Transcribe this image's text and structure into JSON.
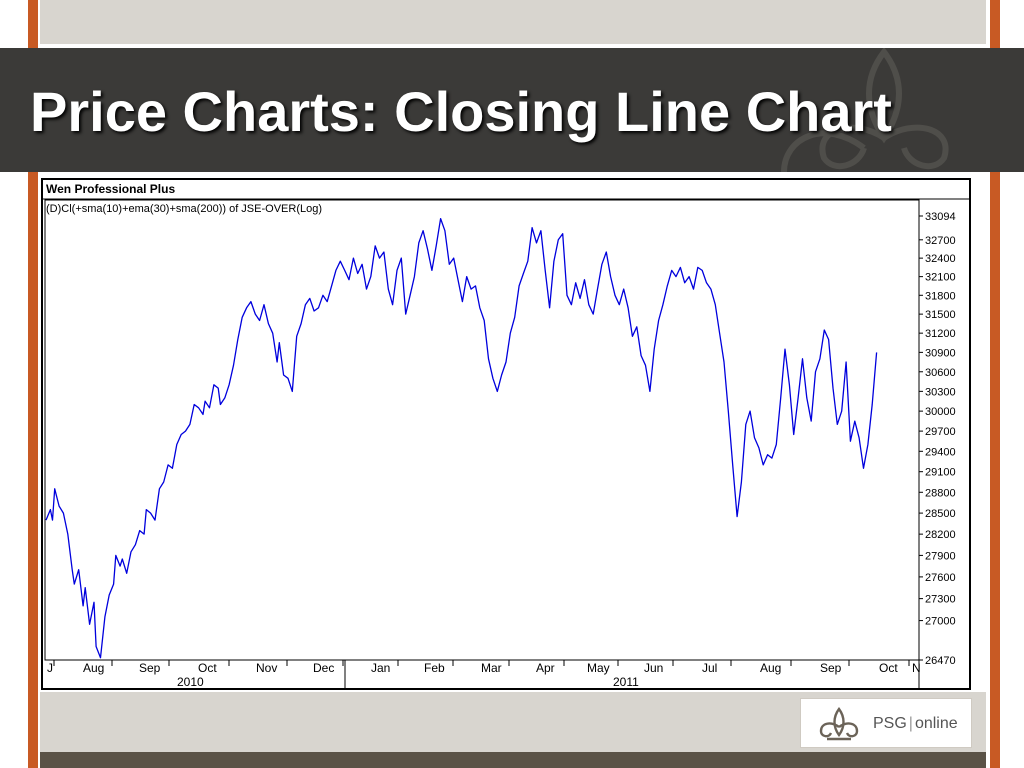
{
  "slide": {
    "title": "Price Charts: Closing Line Chart",
    "colors": {
      "accent": "#c85a24",
      "header_bg": "#3b3a38",
      "panel": "#d8d5cf",
      "line": "#0000dd"
    }
  },
  "logo": {
    "brand": "PSG",
    "suffix": "online",
    "icon": "fleur-de-lis-icon"
  },
  "chart_data": {
    "type": "line",
    "title": "Wen Professional Plus",
    "subtitle": "(D)Cl(+sma(10)+ema(30)+sma(200)) of JSE-OVER(Log)",
    "y_scale": "log",
    "ylim": [
      26470,
      33094
    ],
    "y_ticks": [
      "33094",
      "32700",
      "32400",
      "32100",
      "31800",
      "31500",
      "31200",
      "30900",
      "30600",
      "30300",
      "30000",
      "29700",
      "29400",
      "29100",
      "28800",
      "28500",
      "28200",
      "27900",
      "27600",
      "27300",
      "27000",
      "26470"
    ],
    "x_month_labels": [
      "J",
      "Aug",
      "Sep",
      "Oct",
      "Nov",
      "Dec",
      "Jan",
      "Feb",
      "Mar",
      "Apr",
      "May",
      "Jun",
      "Jul",
      "Aug",
      "Sep",
      "Oct",
      "N"
    ],
    "x_year_labels": [
      "2010",
      "2011"
    ],
    "grid": false,
    "series": [
      {
        "values": [
          [
            0,
            28400
          ],
          [
            2,
            28550
          ],
          [
            3,
            28400
          ],
          [
            4,
            28850
          ],
          [
            6,
            28600
          ],
          [
            8,
            28500
          ],
          [
            10,
            28200
          ],
          [
            12,
            27700
          ],
          [
            13,
            27500
          ],
          [
            15,
            27700
          ],
          [
            17,
            27200
          ],
          [
            18,
            27450
          ],
          [
            20,
            26950
          ],
          [
            22,
            27250
          ],
          [
            23,
            26650
          ],
          [
            25,
            26500
          ],
          [
            27,
            27050
          ],
          [
            29,
            27350
          ],
          [
            31,
            27500
          ],
          [
            32,
            27900
          ],
          [
            34,
            27750
          ],
          [
            35,
            27850
          ],
          [
            37,
            27650
          ],
          [
            39,
            27950
          ],
          [
            41,
            28050
          ],
          [
            43,
            28250
          ],
          [
            45,
            28200
          ],
          [
            46,
            28550
          ],
          [
            48,
            28500
          ],
          [
            50,
            28400
          ],
          [
            52,
            28850
          ],
          [
            54,
            28950
          ],
          [
            56,
            29200
          ],
          [
            58,
            29150
          ],
          [
            60,
            29500
          ],
          [
            62,
            29650
          ],
          [
            64,
            29700
          ],
          [
            66,
            29800
          ],
          [
            68,
            30100
          ],
          [
            70,
            30050
          ],
          [
            72,
            29950
          ],
          [
            73,
            30150
          ],
          [
            75,
            30050
          ],
          [
            77,
            30400
          ],
          [
            79,
            30350
          ],
          [
            80,
            30100
          ],
          [
            82,
            30200
          ],
          [
            84,
            30400
          ],
          [
            86,
            30700
          ],
          [
            88,
            31100
          ],
          [
            90,
            31450
          ],
          [
            92,
            31600
          ],
          [
            94,
            31700
          ],
          [
            96,
            31500
          ],
          [
            98,
            31400
          ],
          [
            100,
            31650
          ],
          [
            102,
            31350
          ],
          [
            104,
            31200
          ],
          [
            106,
            30750
          ],
          [
            107,
            31050
          ],
          [
            109,
            30550
          ],
          [
            111,
            30500
          ],
          [
            113,
            30300
          ],
          [
            115,
            31150
          ],
          [
            117,
            31350
          ],
          [
            119,
            31650
          ],
          [
            121,
            31750
          ],
          [
            123,
            31550
          ],
          [
            125,
            31600
          ],
          [
            127,
            31800
          ],
          [
            129,
            31700
          ],
          [
            131,
            31950
          ],
          [
            133,
            32200
          ],
          [
            135,
            32350
          ],
          [
            137,
            32200
          ],
          [
            139,
            32050
          ],
          [
            141,
            32400
          ],
          [
            143,
            32150
          ],
          [
            145,
            32300
          ],
          [
            147,
            31900
          ],
          [
            149,
            32100
          ],
          [
            151,
            32600
          ],
          [
            153,
            32400
          ],
          [
            155,
            32500
          ],
          [
            157,
            31900
          ],
          [
            159,
            31650
          ],
          [
            161,
            32200
          ],
          [
            163,
            32400
          ],
          [
            165,
            31500
          ],
          [
            167,
            31800
          ],
          [
            169,
            32100
          ],
          [
            171,
            32650
          ],
          [
            173,
            32850
          ],
          [
            175,
            32550
          ],
          [
            177,
            32200
          ],
          [
            179,
            32600
          ],
          [
            181,
            33050
          ],
          [
            183,
            32850
          ],
          [
            185,
            32300
          ],
          [
            187,
            32400
          ],
          [
            189,
            32050
          ],
          [
            191,
            31700
          ],
          [
            193,
            32100
          ],
          [
            195,
            31900
          ],
          [
            197,
            31950
          ],
          [
            199,
            31600
          ],
          [
            201,
            31400
          ],
          [
            203,
            30800
          ],
          [
            205,
            30500
          ],
          [
            207,
            30300
          ],
          [
            209,
            30550
          ],
          [
            211,
            30750
          ],
          [
            213,
            31200
          ],
          [
            215,
            31450
          ],
          [
            217,
            31950
          ],
          [
            219,
            32150
          ],
          [
            221,
            32350
          ],
          [
            223,
            32900
          ],
          [
            225,
            32650
          ],
          [
            227,
            32850
          ],
          [
            229,
            32200
          ],
          [
            231,
            31600
          ],
          [
            233,
            32350
          ],
          [
            235,
            32700
          ],
          [
            237,
            32800
          ],
          [
            239,
            31800
          ],
          [
            241,
            31650
          ],
          [
            243,
            32000
          ],
          [
            245,
            31750
          ],
          [
            247,
            32050
          ],
          [
            249,
            31650
          ],
          [
            251,
            31500
          ],
          [
            253,
            31900
          ],
          [
            255,
            32300
          ],
          [
            257,
            32500
          ],
          [
            259,
            32100
          ],
          [
            261,
            31800
          ],
          [
            263,
            31650
          ],
          [
            265,
            31900
          ],
          [
            267,
            31600
          ],
          [
            269,
            31150
          ],
          [
            271,
            31300
          ],
          [
            273,
            30850
          ],
          [
            275,
            30700
          ],
          [
            277,
            30300
          ],
          [
            279,
            30950
          ],
          [
            281,
            31400
          ],
          [
            283,
            31650
          ],
          [
            285,
            31950
          ],
          [
            287,
            32200
          ],
          [
            289,
            32100
          ],
          [
            291,
            32250
          ],
          [
            293,
            32000
          ],
          [
            295,
            32100
          ],
          [
            297,
            31900
          ],
          [
            299,
            32250
          ],
          [
            301,
            32200
          ],
          [
            303,
            32000
          ],
          [
            305,
            31900
          ],
          [
            307,
            31650
          ],
          [
            309,
            31200
          ],
          [
            311,
            30750
          ],
          [
            313,
            30000
          ],
          [
            315,
            29200
          ],
          [
            317,
            28450
          ],
          [
            319,
            28950
          ],
          [
            321,
            29800
          ],
          [
            323,
            30000
          ],
          [
            325,
            29600
          ],
          [
            327,
            29450
          ],
          [
            329,
            29200
          ],
          [
            331,
            29350
          ],
          [
            333,
            29300
          ],
          [
            335,
            29500
          ],
          [
            337,
            30200
          ],
          [
            339,
            30950
          ],
          [
            341,
            30400
          ],
          [
            343,
            29650
          ],
          [
            345,
            30200
          ],
          [
            347,
            30800
          ],
          [
            349,
            30200
          ],
          [
            351,
            29850
          ],
          [
            353,
            30600
          ],
          [
            355,
            30800
          ],
          [
            357,
            31250
          ],
          [
            359,
            31100
          ],
          [
            361,
            30350
          ],
          [
            363,
            29800
          ],
          [
            365,
            30000
          ],
          [
            367,
            30750
          ],
          [
            369,
            29550
          ],
          [
            371,
            29850
          ],
          [
            373,
            29600
          ],
          [
            375,
            29150
          ],
          [
            377,
            29500
          ],
          [
            379,
            30100
          ],
          [
            381,
            30900
          ]
        ]
      }
    ]
  }
}
